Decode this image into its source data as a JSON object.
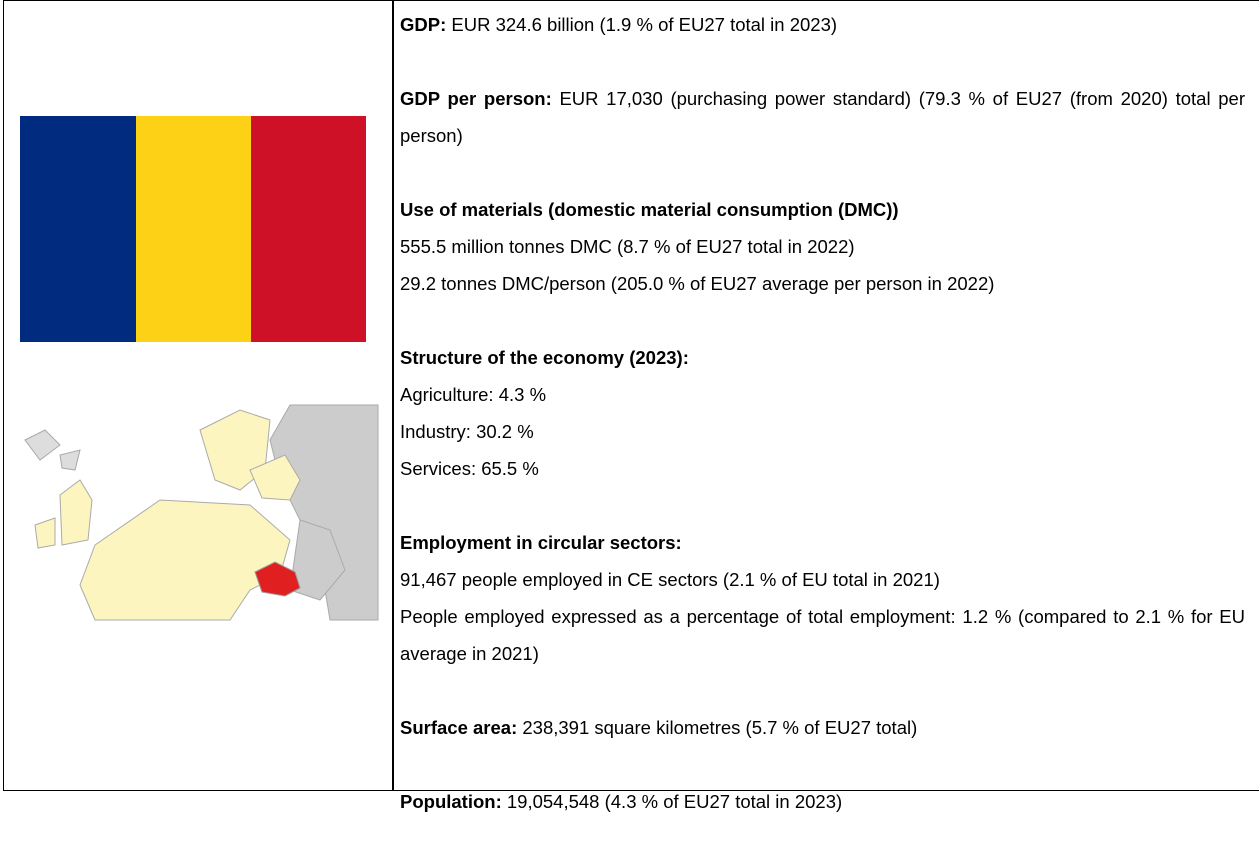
{
  "sections": [
    {
      "label": "GDP:",
      "text": "EUR 324.6 billion (1.9 % of EU27 total in 2023)"
    },
    {
      "label": "GDP per person:",
      "text": "EUR 17,030 (purchasing power standard) (79.3 % of EU27 (from 2020) total per person)"
    },
    {
      "heading": "Use of materials (domestic material consumption (DMC))",
      "lines": [
        "555.5 million tonnes DMC (8.7 % of EU27 total in 2022)",
        "29.2 tonnes DMC/person (205.0 % of EU27 average per person in 2022)"
      ]
    },
    {
      "heading": "Structure of the economy (2023):",
      "lines": [
        "Agriculture: 4.3 %",
        "Industry: 30.2 %",
        "Services: 65.5 %"
      ]
    },
    {
      "heading": "Employment in circular sectors:",
      "lines": [
        "91,467 people employed in CE sectors (2.1 % of EU total in 2021)",
        "People employed expressed as a percentage of total employment: 1.2 % (compared to 2.1 % for EU average in 2021)"
      ]
    },
    {
      "label": "Surface area:",
      "text": "238,391 square kilometres (5.7 % of EU27 total)"
    },
    {
      "label": "Population:",
      "text": "19,054,548 (4.3 % of EU27 total in 2023)"
    }
  ]
}
